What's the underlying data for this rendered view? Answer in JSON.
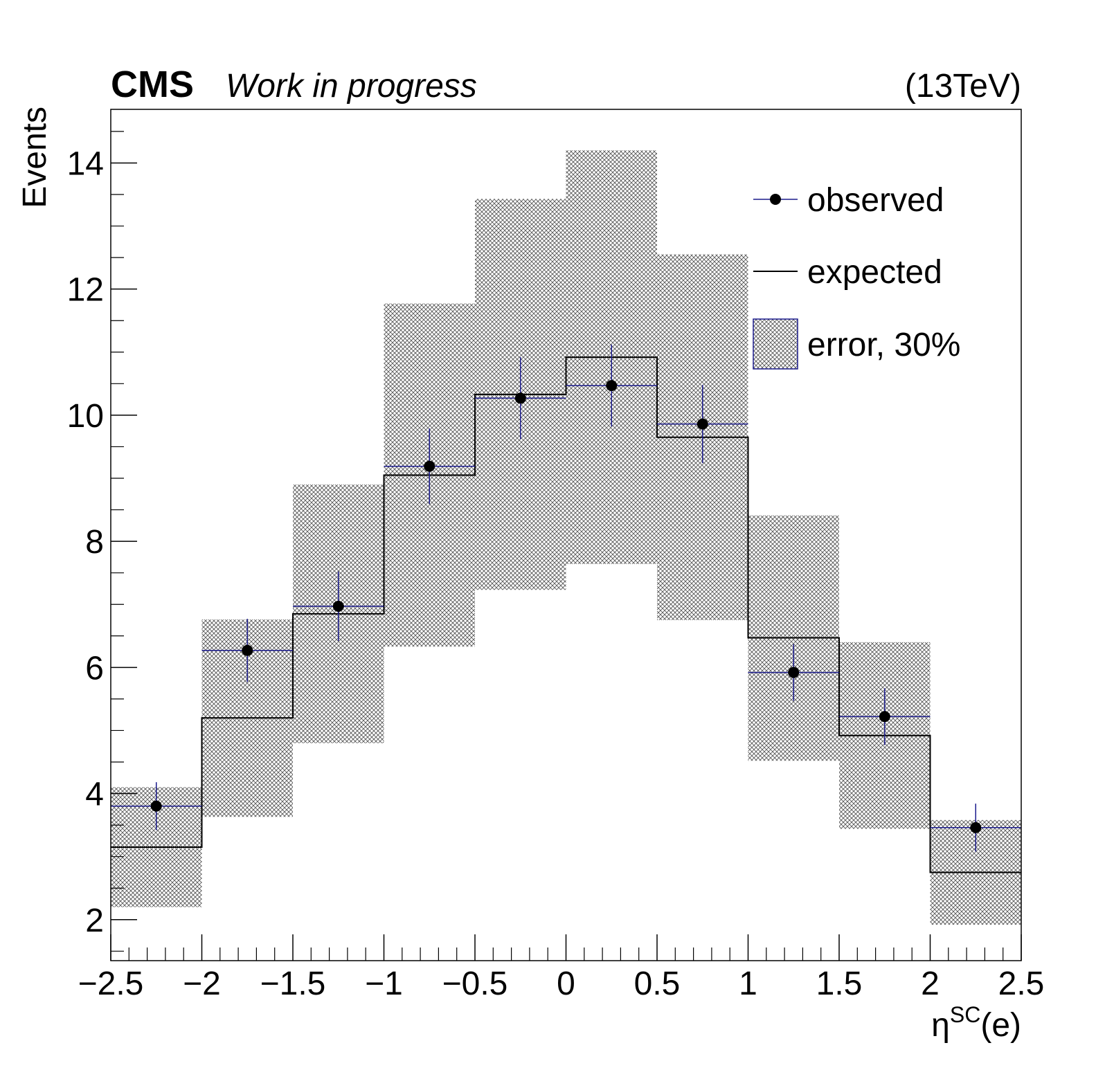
{
  "header": {
    "experiment": "CMS",
    "status": "Work in progress",
    "energy": "(13TeV)"
  },
  "chart_data": {
    "type": "histogram",
    "xlabel_base": "η",
    "xlabel_sup": "SC",
    "xlabel_tail": "(e)",
    "ylabel": "Events",
    "xlim": [
      -2.5,
      2.5
    ],
    "ylim": [
      1.35,
      14.85
    ],
    "x_ticks": [
      -2.5,
      -2,
      -1.5,
      -1,
      -0.5,
      0,
      0.5,
      1,
      1.5,
      2,
      2.5
    ],
    "x_tick_labels": [
      "−2.5",
      "−2",
      "−1.5",
      "−1",
      "−0.5",
      "0",
      "0.5",
      "1",
      "1.5",
      "2",
      "2.5"
    ],
    "y_ticks": [
      2,
      4,
      6,
      8,
      10,
      12,
      14
    ],
    "y_tick_labels": [
      "2",
      "4",
      "6",
      "8",
      "10",
      "12",
      "14"
    ],
    "bin_edges": [
      -2.5,
      -2,
      -1.5,
      -1,
      -0.5,
      0,
      0.5,
      1,
      1.5,
      2,
      2.5
    ],
    "series": [
      {
        "name": "observed",
        "kind": "points",
        "x": [
          -2.25,
          -1.75,
          -1.25,
          -0.75,
          -0.25,
          0.25,
          0.75,
          1.25,
          1.75,
          2.25
        ],
        "y": [
          3.8,
          6.27,
          6.97,
          9.19,
          10.27,
          10.47,
          9.86,
          5.92,
          5.22,
          3.46
        ],
        "yerr": [
          0.38,
          0.5,
          0.55,
          0.6,
          0.65,
          0.65,
          0.62,
          0.45,
          0.45,
          0.38
        ]
      },
      {
        "name": "expected",
        "kind": "step",
        "values": [
          3.15,
          5.2,
          6.85,
          9.05,
          10.33,
          10.92,
          9.65,
          6.47,
          4.92,
          2.75
        ]
      },
      {
        "name": "error, 30%",
        "kind": "band",
        "low": [
          2.2,
          3.63,
          4.8,
          6.33,
          7.23,
          7.64,
          6.75,
          4.52,
          3.44,
          1.92
        ],
        "high": [
          4.1,
          6.76,
          8.9,
          11.77,
          13.43,
          14.2,
          12.55,
          8.41,
          6.4,
          3.58
        ]
      }
    ],
    "legend": {
      "placement": "top-right",
      "entries": [
        "observed",
        "expected",
        "error, 30%"
      ]
    },
    "colors": {
      "points": "#000000",
      "errorbars": "#1a1a8c",
      "step": "#000000",
      "band_hatch": "#555555",
      "legend_box": "#1a1a8c"
    },
    "grid": false
  }
}
